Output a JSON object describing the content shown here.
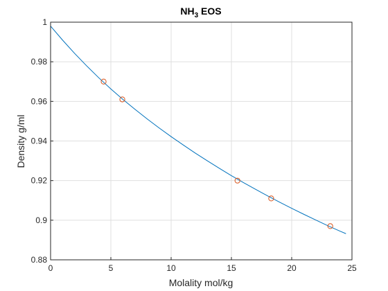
{
  "chart_data": {
    "type": "line",
    "title": {
      "main": "NH",
      "subscript": "3",
      "suffix": " EOS"
    },
    "xlabel": "Molality mol/kg",
    "ylabel": "Density g/ml",
    "xlim": [
      0,
      25
    ],
    "ylim": [
      0.88,
      1.0
    ],
    "x_ticks": [
      0,
      5,
      10,
      15,
      20,
      25
    ],
    "y_ticks": [
      0.88,
      0.9,
      0.92,
      0.94,
      0.96,
      0.98,
      1.0
    ],
    "x_tick_labels": [
      "0",
      "5",
      "10",
      "15",
      "20",
      "25"
    ],
    "y_tick_labels": [
      "0.88",
      "0.9",
      "0.92",
      "0.94",
      "0.96",
      "0.98",
      "1"
    ],
    "grid": true,
    "series": [
      {
        "style": "line",
        "color": "#0072BD",
        "x": [
          0,
          1,
          2,
          3,
          4,
          5,
          6,
          7,
          8,
          9,
          10,
          11,
          12,
          13,
          14,
          15,
          16,
          17,
          18,
          19,
          20,
          21,
          22,
          23,
          24,
          24.5
        ],
        "y": [
          0.998,
          0.9909,
          0.9842,
          0.9779,
          0.9719,
          0.9663,
          0.961,
          0.956,
          0.9512,
          0.9466,
          0.9422,
          0.938,
          0.9339,
          0.93,
          0.9262,
          0.9225,
          0.919,
          0.9156,
          0.9123,
          0.9091,
          0.906,
          0.903,
          0.9001,
          0.8972,
          0.8945,
          0.8932
        ]
      },
      {
        "style": "markers",
        "marker": "circle",
        "color": "#D95319",
        "x": [
          4.4,
          5.95,
          15.5,
          18.3,
          23.2
        ],
        "y": [
          0.97,
          0.961,
          0.92,
          0.911,
          0.897
        ]
      }
    ]
  }
}
